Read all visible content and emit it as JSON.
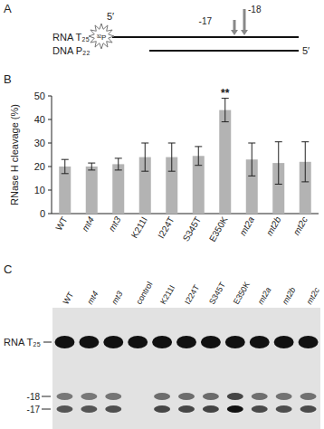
{
  "panels": [
    "A",
    "B",
    "C"
  ],
  "diagram": {
    "rna_label": "RNA T₂₅",
    "dna_label": "DNA P₂₂",
    "five_prime": "5′",
    "isotope": "³²P",
    "sites": [
      "-17",
      "-18"
    ]
  },
  "chart_data": {
    "type": "bar",
    "y_label": "RNase H cleavage (%)",
    "categories": [
      "WT",
      "mt4",
      "mt3",
      "K211I",
      "I224T",
      "S345T",
      "E350K",
      "mt2a",
      "mt2b",
      "mt2c"
    ],
    "values": [
      20,
      20,
      21,
      24,
      24,
      24.5,
      44,
      23,
      21.5,
      22
    ],
    "errors": [
      3,
      1.5,
      2.5,
      6,
      6,
      4,
      5,
      7,
      9,
      8.5
    ],
    "color": "#b3b3b3",
    "ylim": [
      0,
      50
    ],
    "yticks": [
      0,
      10,
      20,
      30,
      40,
      50
    ],
    "grid": false,
    "annotations": [
      {
        "text": "**",
        "category": "E350K"
      }
    ]
  },
  "gel": {
    "lanes": [
      {
        "label": "WT",
        "cleaved": true
      },
      {
        "label": "mt4",
        "cleaved": true
      },
      {
        "label": "mt3",
        "cleaved": true
      },
      {
        "label": "control",
        "cleaved": false
      },
      {
        "label": "K211I",
        "cleaved": true
      },
      {
        "label": "I224T",
        "cleaved": true
      },
      {
        "label": "S345T",
        "cleaved": true
      },
      {
        "label": "E350K",
        "cleaved": true
      },
      {
        "label": "mt2a",
        "cleaved": true
      },
      {
        "label": "mt2b",
        "cleaved": true
      },
      {
        "label": "mt2c",
        "cleaved": true
      }
    ],
    "substrate_label": "RNA T₂₅",
    "product_labels": [
      "-18",
      "-17"
    ]
  }
}
